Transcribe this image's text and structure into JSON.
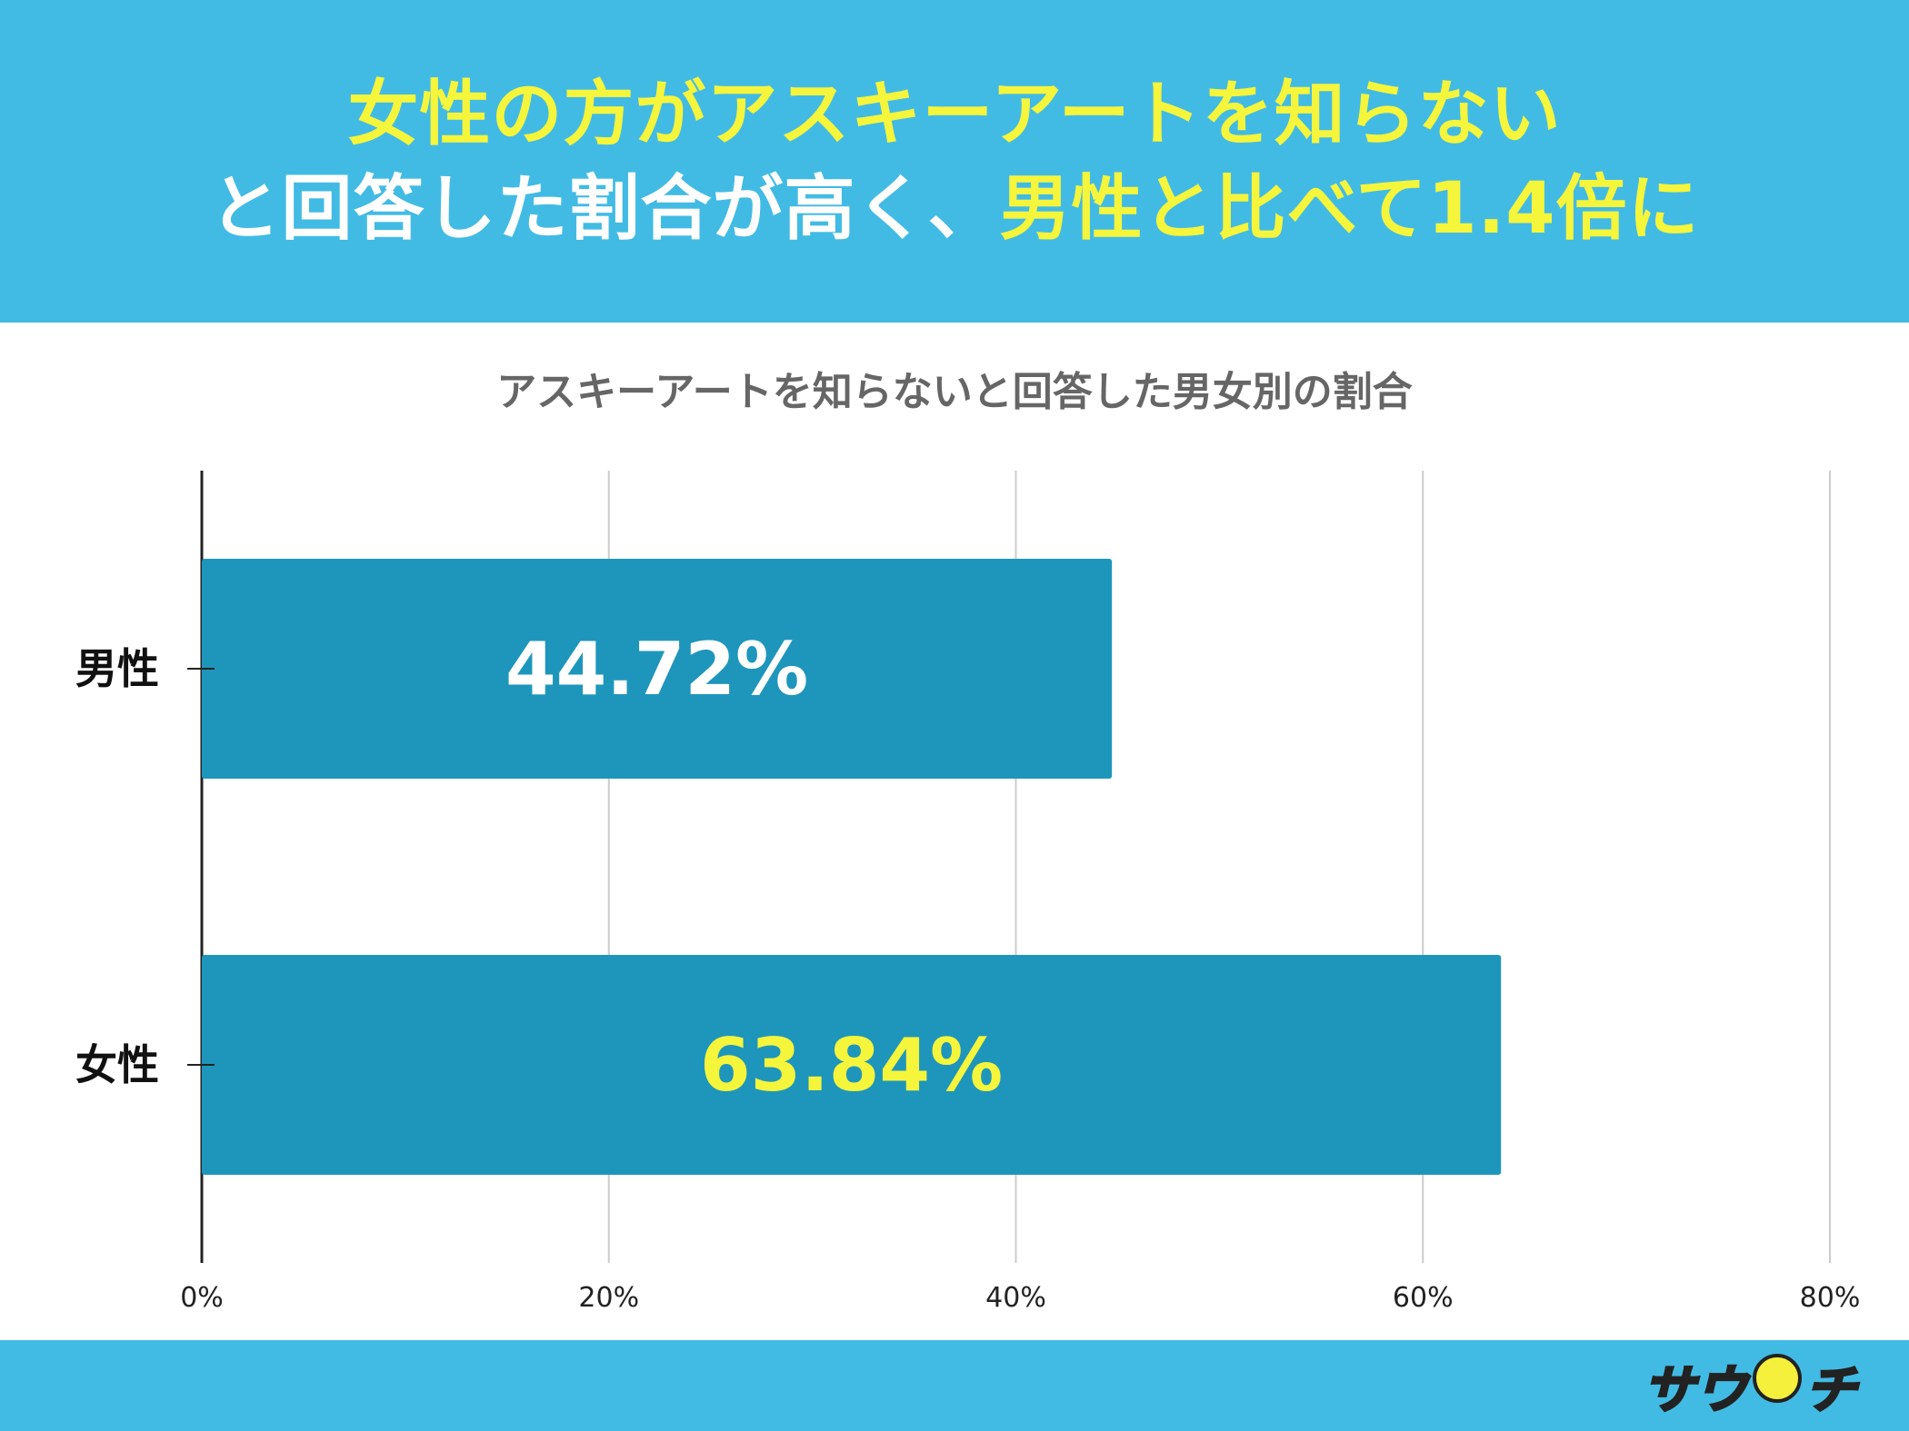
{
  "header": {
    "line1": [
      {
        "text": "女性の方がアスキーアートを知らない",
        "color": "#f5f53c"
      }
    ],
    "line2": [
      {
        "text": "と回答した割合が高く、",
        "color": "#ffffff"
      },
      {
        "text": "男性と比べて1.4倍に",
        "color": "#f5f53c"
      }
    ]
  },
  "chart_data": {
    "type": "bar",
    "orientation": "horizontal",
    "title": "アスキーアートを知らないと回答した男女別の割合",
    "categories": [
      "男性",
      "女性"
    ],
    "values": [
      44.72,
      63.84
    ],
    "data_labels": [
      "44.72%",
      "63.84%"
    ],
    "data_label_colors": [
      "#ffffff",
      "#f5f53c"
    ],
    "xlim": [
      0,
      80
    ],
    "x_ticks": [
      0,
      20,
      40,
      60,
      80
    ],
    "x_tick_labels": [
      "0%",
      "20%",
      "40%",
      "60%",
      "80%"
    ],
    "bar_color": "#1e96bc",
    "grid": true,
    "legend": "none"
  },
  "footer": {
    "logo_text_a": "サウ",
    "logo_text_b": "チ"
  }
}
